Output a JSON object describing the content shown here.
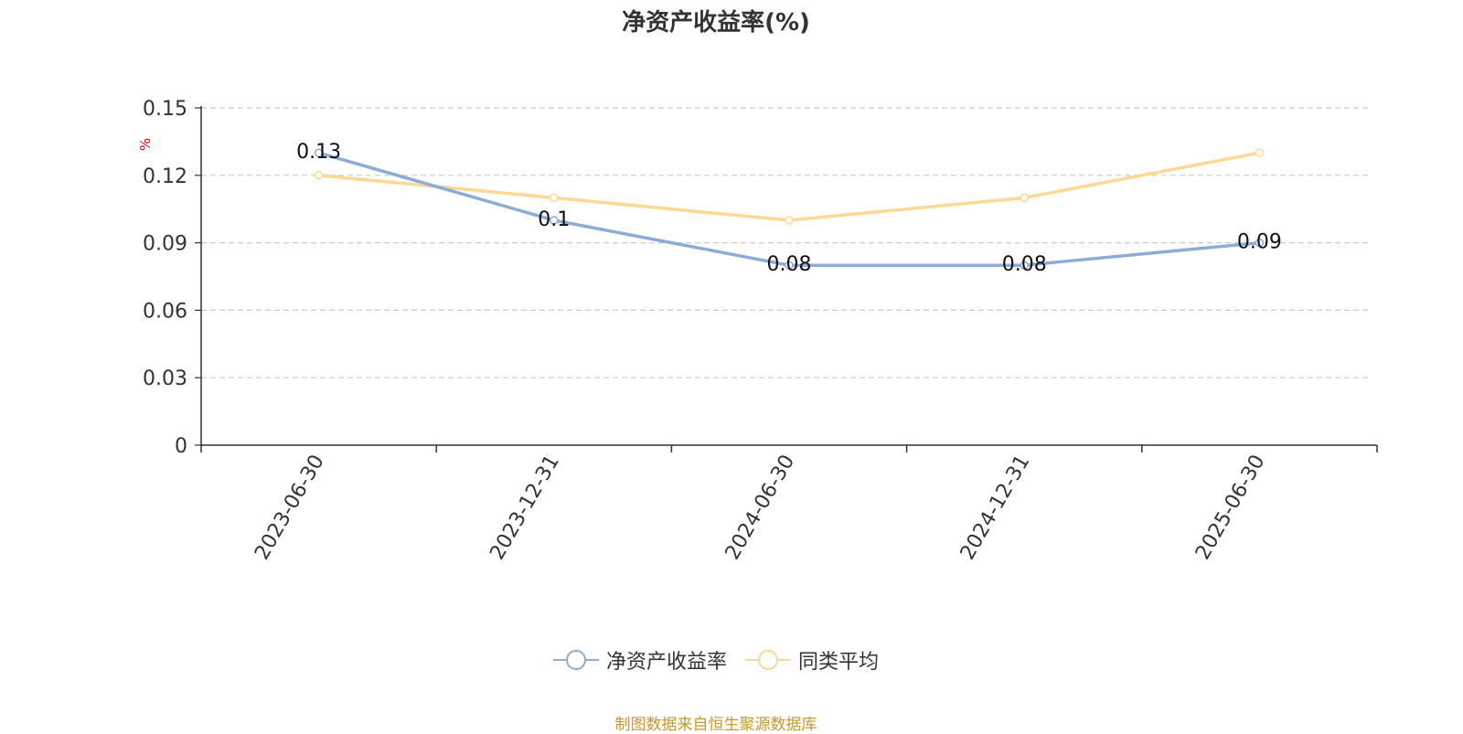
{
  "chart_data": {
    "type": "line",
    "title": "净资产收益率(%)",
    "ylabel": "%",
    "xlabel": "",
    "categories": [
      "2023-06-30",
      "2023-12-31",
      "2024-06-30",
      "2024-12-31",
      "2025-06-30"
    ],
    "series": [
      {
        "name": "净资产收益率",
        "values": [
          0.13,
          0.1,
          0.08,
          0.08,
          0.09
        ],
        "color": "#8eacd8",
        "data_labels": [
          "0.13",
          "0.1",
          "0.08",
          "0.08",
          "0.09"
        ]
      },
      {
        "name": "同类平均",
        "values": [
          0.12,
          0.11,
          0.1,
          0.11,
          0.13
        ],
        "color": "#fcd993"
      }
    ],
    "ylim": [
      0,
      0.15
    ],
    "yticks": [
      "0",
      "0.03",
      "0.06",
      "0.09",
      "0.12",
      "0.15"
    ],
    "grid": true,
    "legend_position": "bottom",
    "ylabel_color": "#e00000"
  },
  "footer": {
    "source": "制图数据来自恒生聚源数据库"
  }
}
